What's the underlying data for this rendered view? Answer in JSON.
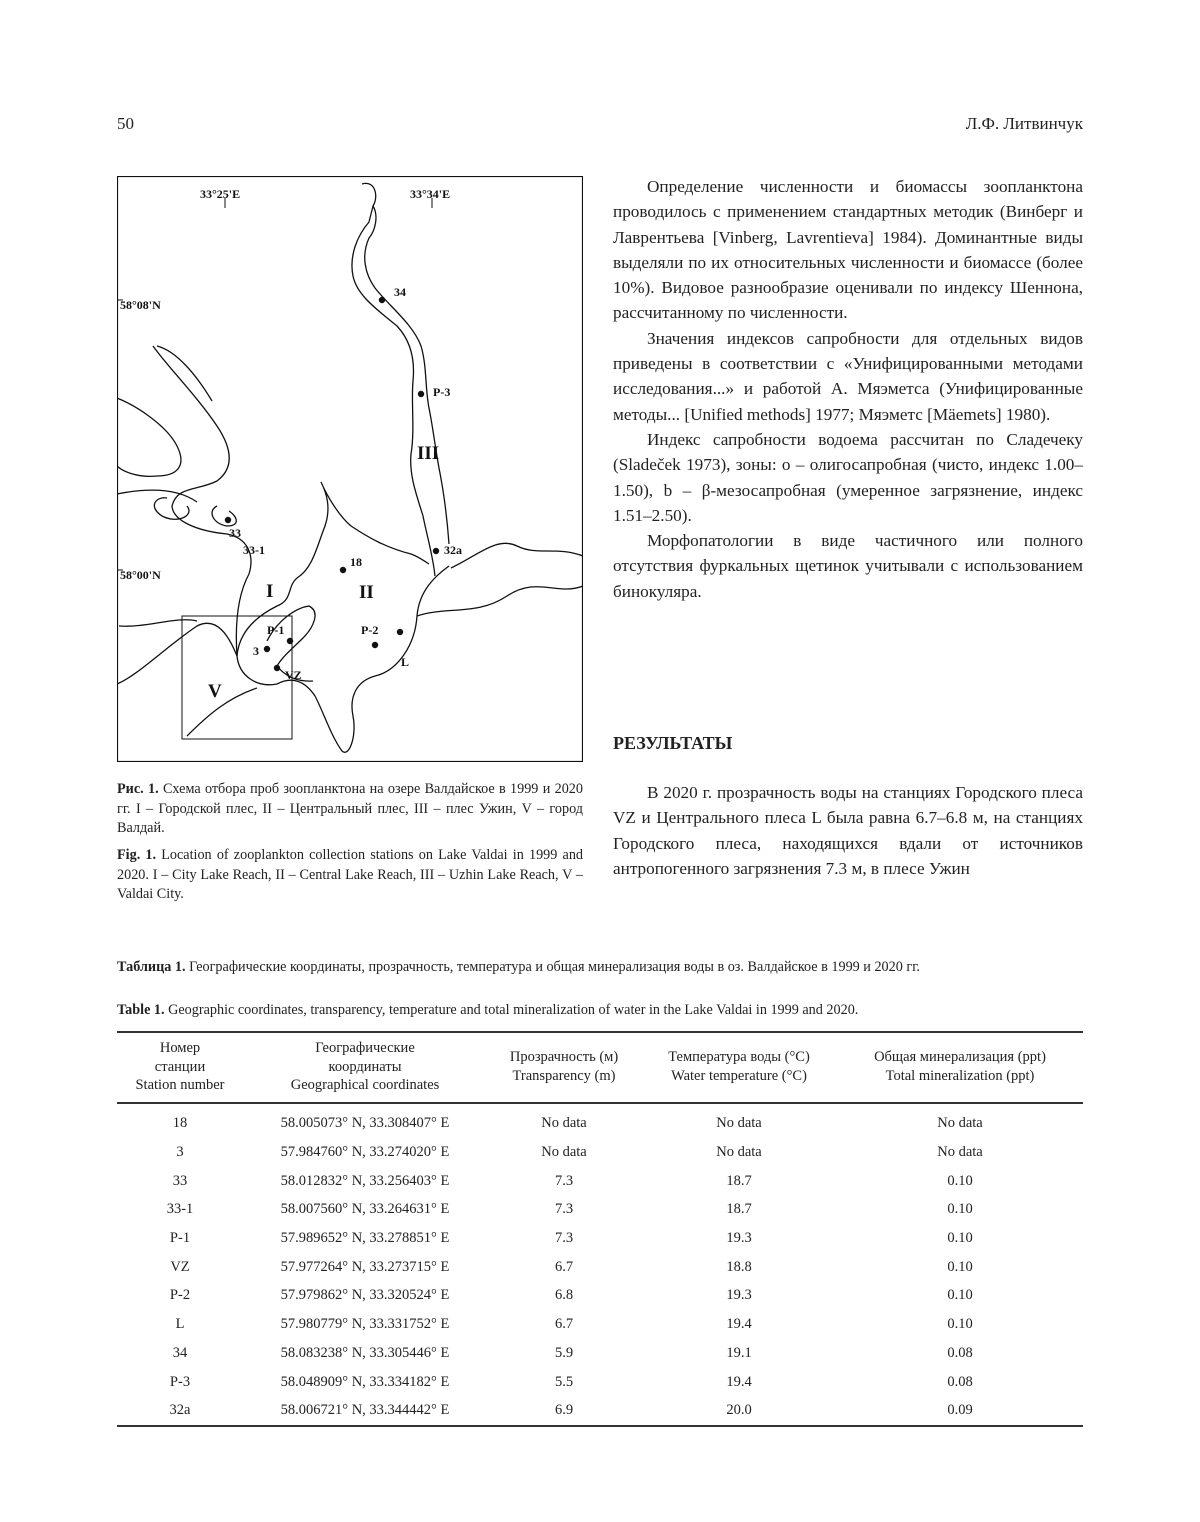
{
  "header": {
    "page_number": "50",
    "author": "Л.Ф. Литвинчук"
  },
  "figure": {
    "map_labels": {
      "lon1": "33°25'E",
      "lon2": "33°34'E",
      "lat1": "58°08'N",
      "lat2": "58°00'N",
      "stations": [
        "34",
        "P-3",
        "33",
        "33-1",
        "18",
        "32a",
        "P-1",
        "P-2",
        "L",
        "3",
        "VZ"
      ],
      "reaches": [
        "I",
        "II",
        "III",
        "V"
      ]
    },
    "caption_ru_label": "Рис. 1.",
    "caption_ru": " Схема отбора проб зоопланктона на озере Валдайское в 1999 и 2020 гг. I – Городской плес, II – Центральный плес, III – плес Ужин, V – город Валдай.",
    "caption_en_label": "Fig. 1.",
    "caption_en": " Location of zooplankton collection stations on Lake Valdai in 1999 and 2020. I – City Lake Reach, II – Central Lake Reach, III – Uzhin Lake Reach, V – Valdai City."
  },
  "body": {
    "p1": "Определение численности и биомассы зоопланктона проводилось с применением стандартных методик (Винберг и Лаврентьева [Vinberg, Lavrentieva] 1984). Доминантные виды выделяли по их относительных численности и биомассе (более 10%). Видовое разнообразие оценивали по индексу Шеннона, рассчитанному по численности.",
    "p2": "Значения индексов сапробности для отдельных видов приведены в соответствии с «Унифицированными методами исследования...» и работой А. Мяэметса (Унифицированные методы... [Unified methods] 1977; Мяэметс [Mäemets] 1980).",
    "p3": "Индекс сапробности водоема рассчитан по Сладечеку (Sladeček 1973), зоны: o – олигосапробная (чисто, индекс 1.00–1.50), b – β-мезосапробная (умеренное загрязнение, индекс 1.51–2.50).",
    "p4": "Морфопатологии в виде частичного или полного отсутствия фуркальных щетинок учитывали с использованием бинокуляра.",
    "heading": "РЕЗУЛЬТАТЫ",
    "p5": "В 2020 г. прозрачность воды на станциях Городского плеса VZ и Центрального плеса L была равна 6.7–6.8 м, на станциях Городского плеса, находящихся вдали от источников антропогенного загрязнения 7.3 м, в плесе Ужин"
  },
  "table": {
    "caption_ru_label": "Таблица 1.",
    "caption_ru": " Географические координаты, прозрачность, температура и общая минерализация воды в оз. Валдайское в 1999 и 2020 гг.",
    "caption_en_label": "Table 1.",
    "caption_en": " Geographic coordinates, transparency, temperature and total mineralization of water in the Lake Valdai in 1999 and 2020.",
    "headers": [
      [
        "Номер",
        "станции",
        "Station number"
      ],
      [
        "Географические",
        "координаты",
        "Geographical coordinates"
      ],
      [
        "Прозрачность (м)",
        "Transparency (m)"
      ],
      [
        "Температура воды (°C)",
        "Water temperature (°C)"
      ],
      [
        "Общая минерализация (ppt)",
        "Total mineralization (ppt)"
      ]
    ],
    "rows": [
      [
        "18",
        "58.005073° N, 33.308407° E",
        "No data",
        "No data",
        "No data"
      ],
      [
        "3",
        "57.984760° N, 33.274020° E",
        "No data",
        "No data",
        "No data"
      ],
      [
        "33",
        "58.012832° N, 33.256403° E",
        "7.3",
        "18.7",
        "0.10"
      ],
      [
        "33-1",
        "58.007560° N, 33.264631° E",
        "7.3",
        "18.7",
        "0.10"
      ],
      [
        "P-1",
        "57.989652° N, 33.278851° E",
        "7.3",
        "19.3",
        "0.10"
      ],
      [
        "VZ",
        "57.977264° N, 33.273715° E",
        "6.7",
        "18.8",
        "0.10"
      ],
      [
        "P-2",
        "57.979862° N, 33.320524° E",
        "6.8",
        "19.3",
        "0.10"
      ],
      [
        "L",
        "57.980779° N, 33.331752° E",
        "6.7",
        "19.4",
        "0.10"
      ],
      [
        "34",
        "58.083238° N, 33.305446° E",
        "5.9",
        "19.1",
        "0.08"
      ],
      [
        "P-3",
        "58.048909° N, 33.334182° E",
        "5.5",
        "19.4",
        "0.08"
      ],
      [
        "32a",
        "58.006721° N, 33.344442° E",
        "6.9",
        "20.0",
        "0.09"
      ]
    ]
  }
}
